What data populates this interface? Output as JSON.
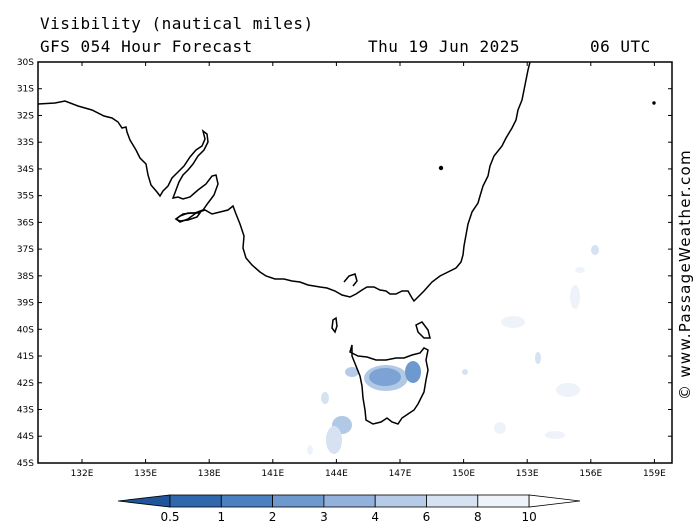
{
  "header": {
    "title": "Visibility (nautical miles)",
    "subtitle": "GFS 054 Hour Forecast",
    "datetime": "Thu 19 Jun 2025",
    "utc": "06 UTC"
  },
  "credit": "© www.PassageWeather.com",
  "lat_labels": [
    "30S",
    "31S",
    "32S",
    "33S",
    "34S",
    "35S",
    "36S",
    "37S",
    "38S",
    "39S",
    "40S",
    "41S",
    "42S",
    "43S",
    "44S",
    "45S"
  ],
  "lon_labels": [
    "132E",
    "135E",
    "138E",
    "141E",
    "144E",
    "147E",
    "150E",
    "153E",
    "156E",
    "159E"
  ],
  "colorbar": {
    "labels": [
      "0.5",
      "1",
      "2",
      "3",
      "4",
      "6",
      "8",
      "10"
    ],
    "colors": [
      "#2f68ad",
      "#4a80c0",
      "#6d99cf",
      "#92b2db",
      "#b6cbe7",
      "#d6e2f1",
      "#eef3fa",
      "#ffffff"
    ]
  }
}
